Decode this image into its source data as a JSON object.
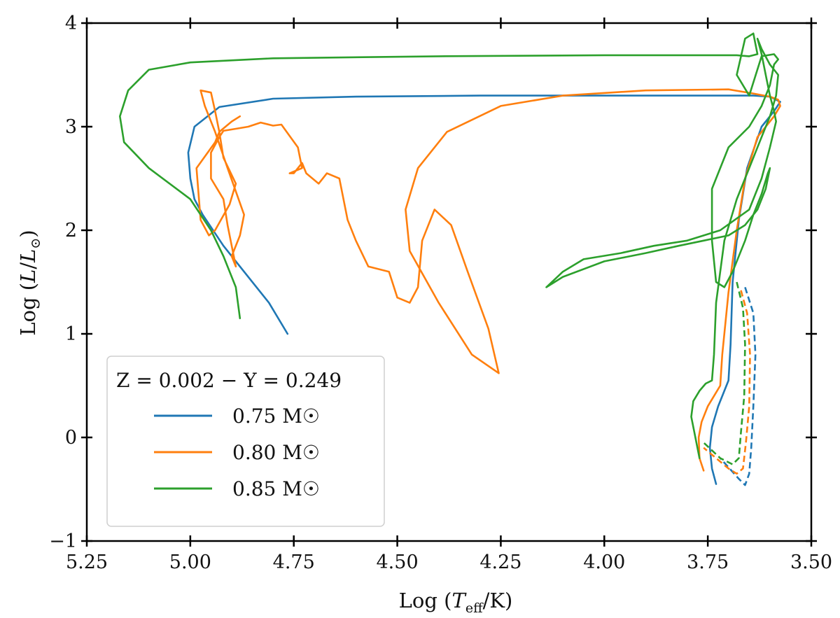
{
  "chart_data": {
    "type": "line",
    "title": "",
    "xlabel": "Log (T_eff/K)",
    "ylabel": "Log (L/L_sun)",
    "xlim": [
      5.25,
      3.5
    ],
    "ylim": [
      -1,
      4
    ],
    "xticks": [
      "5.25",
      "5.00",
      "4.75",
      "4.50",
      "4.25",
      "4.00",
      "3.75",
      "3.50"
    ],
    "yticks": [
      "−1",
      "0",
      "1",
      "2",
      "3",
      "4"
    ],
    "xtick_values": [
      5.25,
      5.0,
      4.75,
      4.5,
      4.25,
      4.0,
      3.75,
      3.5
    ],
    "ytick_values": [
      -1,
      0,
      1,
      2,
      3,
      4
    ],
    "legend_title": "Z = 0.002 − Y = 0.249",
    "legend_position": "lower-left",
    "grid": false,
    "series": [
      {
        "name": "0.75 M☉",
        "color": "#1f77b4",
        "x": [
          3.73,
          3.74,
          3.745,
          3.74,
          3.725,
          3.71,
          3.7,
          3.695,
          3.69,
          3.675,
          3.655,
          3.62,
          3.59,
          3.575,
          3.6,
          3.64,
          3.75,
          4.0,
          4.3,
          4.6,
          4.8,
          4.93,
          4.99,
          5.005,
          5.0,
          4.99,
          4.97,
          4.92,
          4.87,
          4.81,
          4.765
        ],
        "y": [
          -0.45,
          -0.3,
          -0.1,
          0.1,
          0.3,
          0.45,
          0.55,
          0.9,
          1.5,
          2.1,
          2.6,
          3.0,
          3.15,
          3.24,
          3.29,
          3.3,
          3.3,
          3.3,
          3.3,
          3.29,
          3.27,
          3.19,
          3.0,
          2.75,
          2.5,
          2.3,
          2.15,
          1.85,
          1.6,
          1.3,
          1.0
        ],
        "dashed_x": [
          3.66,
          3.64,
          3.635,
          3.64,
          3.645,
          3.65,
          3.66,
          3.675,
          3.72
        ],
        "dashed_y": [
          1.45,
          1.2,
          0.8,
          0.3,
          -0.1,
          -0.35,
          -0.46,
          -0.4,
          -0.2
        ]
      },
      {
        "name": "0.80 M☉",
        "color": "#ff7f0e",
        "x": [
          3.76,
          3.77,
          3.772,
          3.765,
          3.75,
          3.735,
          3.72,
          3.715,
          3.7,
          3.68,
          3.66,
          3.63,
          3.59,
          3.575,
          3.58,
          3.6,
          3.64,
          3.7,
          3.9,
          4.1,
          4.25,
          4.38,
          4.45,
          4.48,
          4.47,
          4.4,
          4.32,
          4.255,
          4.28,
          4.33,
          4.37,
          4.41,
          4.44,
          4.45,
          4.47,
          4.5,
          4.52,
          4.57,
          4.6,
          4.62,
          4.64,
          4.67,
          4.69,
          4.72,
          4.73,
          4.75,
          4.76,
          4.73,
          4.74,
          4.78,
          4.8,
          4.83,
          4.86,
          4.89,
          4.92,
          4.93,
          4.95,
          4.95,
          4.92,
          4.91,
          4.89,
          4.9,
          4.88,
          4.87,
          4.91,
          4.94,
          4.965,
          4.975,
          4.95,
          4.94,
          4.93,
          4.92,
          4.89,
          4.905,
          4.94,
          4.955,
          4.975,
          4.985,
          4.94,
          4.93,
          4.9,
          4.88
        ],
        "y": [
          -0.32,
          -0.2,
          0.0,
          0.15,
          0.3,
          0.4,
          0.5,
          0.8,
          1.4,
          2.0,
          2.5,
          2.9,
          3.1,
          3.2,
          3.26,
          3.29,
          3.32,
          3.36,
          3.35,
          3.3,
          3.2,
          2.95,
          2.6,
          2.2,
          1.8,
          1.3,
          0.8,
          0.62,
          1.05,
          1.6,
          2.05,
          2.2,
          1.9,
          1.45,
          1.3,
          1.35,
          1.6,
          1.65,
          1.9,
          2.1,
          2.5,
          2.55,
          2.45,
          2.55,
          2.65,
          2.55,
          2.55,
          2.6,
          2.8,
          3.02,
          3.01,
          3.04,
          3.0,
          2.98,
          2.96,
          2.9,
          2.75,
          2.5,
          2.3,
          2.05,
          1.65,
          1.75,
          1.95,
          2.15,
          2.6,
          2.95,
          3.2,
          3.35,
          3.33,
          3.15,
          2.95,
          2.7,
          2.45,
          2.25,
          2.0,
          1.95,
          2.1,
          2.6,
          2.85,
          2.95,
          3.05,
          3.1
        ],
        "dashed_x": [
          3.67,
          3.655,
          3.648,
          3.65,
          3.658,
          3.665,
          3.68,
          3.7,
          3.76
        ],
        "dashed_y": [
          1.42,
          1.2,
          0.8,
          0.3,
          -0.05,
          -0.3,
          -0.35,
          -0.3,
          -0.1
        ]
      },
      {
        "name": "0.85 M☉",
        "color": "#2ca02c",
        "x": [
          3.77,
          3.78,
          3.79,
          3.785,
          3.77,
          3.755,
          3.74,
          3.735,
          3.73,
          3.71,
          3.68,
          3.65,
          3.62,
          3.6,
          3.585,
          3.58,
          3.6,
          3.62,
          3.63,
          3.62,
          3.61,
          3.6,
          3.59,
          3.585,
          3.6,
          3.62,
          3.65,
          3.72,
          3.8,
          3.88,
          3.96,
          4.05,
          4.1,
          4.14,
          4.1,
          4.0,
          3.9,
          3.82,
          3.76,
          3.7,
          3.66,
          3.63,
          3.61,
          3.6,
          3.605,
          3.62,
          3.64,
          3.66,
          3.69,
          3.71,
          3.73,
          3.74,
          3.74,
          3.7,
          3.65,
          3.62,
          3.6,
          3.59,
          3.58,
          3.59,
          3.62,
          3.65,
          3.68,
          3.66,
          3.64,
          3.63,
          3.65,
          3.68,
          3.8,
          4.0,
          4.4,
          4.8,
          5.0,
          5.1,
          5.15,
          5.17,
          5.16,
          5.1,
          5.0,
          4.95,
          4.92,
          4.89,
          4.88
        ],
        "y": [
          -0.2,
          0.0,
          0.2,
          0.35,
          0.45,
          0.52,
          0.55,
          0.8,
          1.3,
          1.9,
          2.3,
          2.6,
          2.9,
          3.1,
          3.3,
          3.5,
          3.6,
          3.75,
          3.85,
          3.7,
          3.5,
          3.3,
          3.15,
          3.05,
          2.8,
          2.5,
          2.2,
          2.0,
          1.9,
          1.85,
          1.78,
          1.72,
          1.6,
          1.45,
          1.55,
          1.7,
          1.78,
          1.85,
          1.9,
          1.95,
          2.05,
          2.2,
          2.4,
          2.6,
          2.55,
          2.35,
          2.15,
          1.9,
          1.6,
          1.45,
          1.5,
          1.9,
          2.4,
          2.8,
          3.0,
          3.2,
          3.4,
          3.6,
          3.65,
          3.7,
          3.68,
          3.3,
          3.5,
          3.85,
          3.9,
          3.7,
          3.68,
          3.69,
          3.69,
          3.69,
          3.68,
          3.66,
          3.62,
          3.55,
          3.35,
          3.1,
          2.85,
          2.6,
          2.3,
          2.0,
          1.75,
          1.45,
          1.15
        ],
        "dashed_x": [
          3.68,
          3.665,
          3.66,
          3.662,
          3.67,
          3.675,
          3.69,
          3.72,
          3.76
        ],
        "dashed_y": [
          1.5,
          1.25,
          0.9,
          0.4,
          0.05,
          -0.2,
          -0.26,
          -0.2,
          -0.05
        ]
      }
    ]
  }
}
